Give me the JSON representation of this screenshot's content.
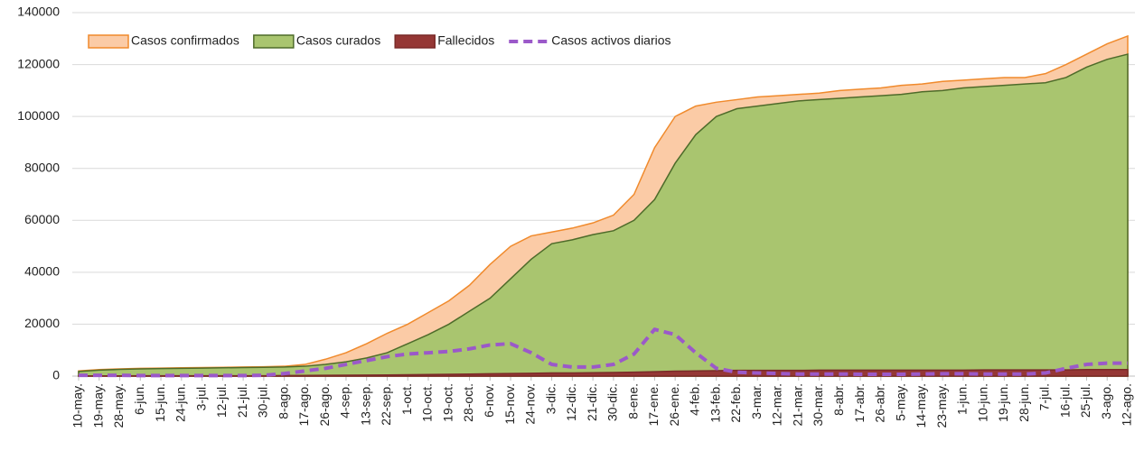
{
  "chart_data": {
    "type": "area",
    "categories": [
      "10-may.",
      "19-may.",
      "28-may.",
      "6-jun.",
      "15-jun.",
      "24-jun.",
      "3-jul.",
      "12-jul.",
      "21-jul.",
      "30-jul.",
      "8-ago.",
      "17-ago.",
      "26-ago.",
      "4-sep.",
      "13-sep.",
      "22-sep.",
      "1-oct.",
      "10-oct.",
      "19-oct.",
      "28-oct.",
      "6-nov.",
      "15-nov.",
      "24-nov.",
      "3-dic.",
      "12-dic.",
      "21-dic.",
      "30-dic.",
      "8-ene.",
      "17-ene.",
      "26-ene.",
      "4-feb.",
      "13-feb.",
      "22-feb.",
      "3-mar.",
      "12-mar.",
      "21-mar.",
      "30-mar.",
      "8-abr.",
      "17-abr.",
      "26-abr.",
      "5-may.",
      "14-may.",
      "23-may.",
      "1-jun.",
      "10-jun.",
      "19-jun.",
      "28-jun.",
      "7-jul.",
      "16-jul.",
      "25-jul.",
      "3-ago.",
      "12-ago."
    ],
    "series": [
      {
        "name": "Casos confirmados",
        "type": "area",
        "color": "#fbcba6",
        "stroke": "#f08a2c",
        "values": [
          2000,
          2500,
          2800,
          3000,
          3100,
          3200,
          3300,
          3400,
          3500,
          3600,
          3800,
          4500,
          6500,
          9000,
          12500,
          16500,
          20000,
          24500,
          29000,
          35000,
          43000,
          50000,
          54000,
          55500,
          57000,
          59000,
          62000,
          70000,
          88000,
          100000,
          104000,
          105500,
          106500,
          107500,
          108000,
          108500,
          109000,
          110000,
          110500,
          111000,
          112000,
          112500,
          113500,
          114000,
          114500,
          115000,
          115000,
          116500,
          120000,
          124000,
          128000,
          131000
        ]
      },
      {
        "name": "Casos curados",
        "type": "area",
        "color": "#a9c56f",
        "stroke": "#4e6b2a",
        "values": [
          1800,
          2300,
          2600,
          2800,
          2900,
          3000,
          3100,
          3200,
          3300,
          3400,
          3500,
          3800,
          4500,
          5500,
          7000,
          9000,
          12500,
          16000,
          20000,
          25000,
          30000,
          37500,
          45000,
          51000,
          52500,
          54500,
          56000,
          60000,
          68000,
          82000,
          93000,
          100000,
          103000,
          104000,
          105000,
          106000,
          106500,
          107000,
          107500,
          108000,
          108500,
          109500,
          110000,
          111000,
          111500,
          112000,
          112500,
          113000,
          115000,
          119000,
          122000,
          124000
        ]
      },
      {
        "name": "Fallecidos",
        "type": "area",
        "color": "#953735",
        "stroke": "#7a2a28",
        "values": [
          100,
          100,
          100,
          150,
          150,
          150,
          150,
          150,
          150,
          150,
          200,
          250,
          300,
          350,
          400,
          450,
          500,
          600,
          700,
          800,
          900,
          1000,
          1100,
          1200,
          1200,
          1300,
          1400,
          1500,
          1700,
          1900,
          2000,
          2100,
          2200,
          2200,
          2200,
          2200,
          2300,
          2300,
          2300,
          2300,
          2300,
          2300,
          2300,
          2300,
          2400,
          2400,
          2400,
          2400,
          2400,
          2500,
          2500,
          2500
        ]
      },
      {
        "name": "Casos activos diarios",
        "type": "line",
        "dashed": true,
        "color": "#9b59c9",
        "values": [
          300,
          300,
          300,
          200,
          200,
          200,
          200,
          200,
          200,
          300,
          1000,
          2000,
          3000,
          4500,
          6000,
          7500,
          8500,
          9000,
          9500,
          10500,
          12000,
          12500,
          9000,
          4500,
          3500,
          3500,
          4500,
          8500,
          18000,
          16000,
          9000,
          3000,
          1500,
          1200,
          1000,
          800,
          800,
          800,
          700,
          700,
          700,
          800,
          900,
          900,
          800,
          800,
          800,
          1200,
          3000,
          4500,
          5000,
          5000
        ]
      }
    ],
    "ylim": [
      0,
      140000
    ],
    "yticks": [
      0,
      20000,
      40000,
      60000,
      80000,
      100000,
      120000,
      140000
    ],
    "grid": true,
    "legend": "top-left"
  }
}
